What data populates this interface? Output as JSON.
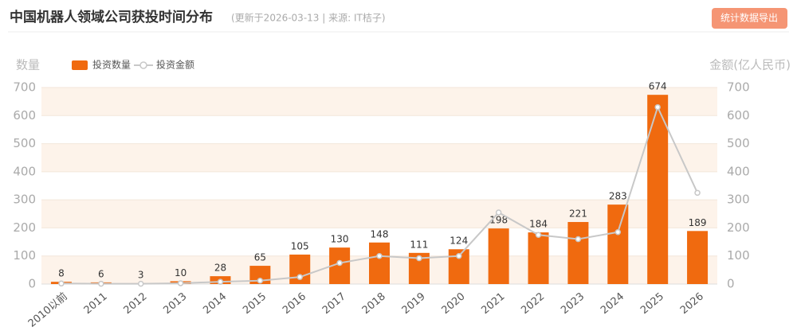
{
  "chart_data": {
    "type": "bar",
    "title": "中国机器人领域公司获投时间分布",
    "subtitle": "(更新于2026-03-13 | 来源: IT桔子)",
    "y_label": "数量",
    "y2_label": "金额(亿人民币)",
    "categories": [
      "2010以前",
      "2011",
      "2012",
      "2013",
      "2014",
      "2015",
      "2016",
      "2017",
      "2018",
      "2019",
      "2020",
      "2021",
      "2022",
      "2023",
      "2024",
      "2025",
      "2026"
    ],
    "series": [
      {
        "name": "投资数量",
        "type": "bar",
        "color": "#f06a0f",
        "values": [
          8,
          6,
          3,
          10,
          28,
          65,
          105,
          130,
          148,
          111,
          124,
          198,
          184,
          221,
          283,
          674,
          189
        ]
      },
      {
        "name": "投资金额",
        "type": "line",
        "axis": "y2",
        "color": "#c8c8c8",
        "values": [
          2,
          1,
          1,
          3,
          8,
          12,
          25,
          75,
          100,
          92,
          100,
          255,
          175,
          160,
          185,
          630,
          325
        ]
      }
    ],
    "ylim": [
      0,
      700
    ],
    "yticks": [
      0,
      100,
      200,
      300,
      400,
      500,
      600,
      700
    ],
    "y2lim": [
      0,
      700
    ],
    "y2ticks": [
      0,
      100,
      200,
      300,
      400,
      500,
      600,
      700
    ],
    "grid": true
  },
  "toolbar": {
    "button": "统计数据导出"
  }
}
